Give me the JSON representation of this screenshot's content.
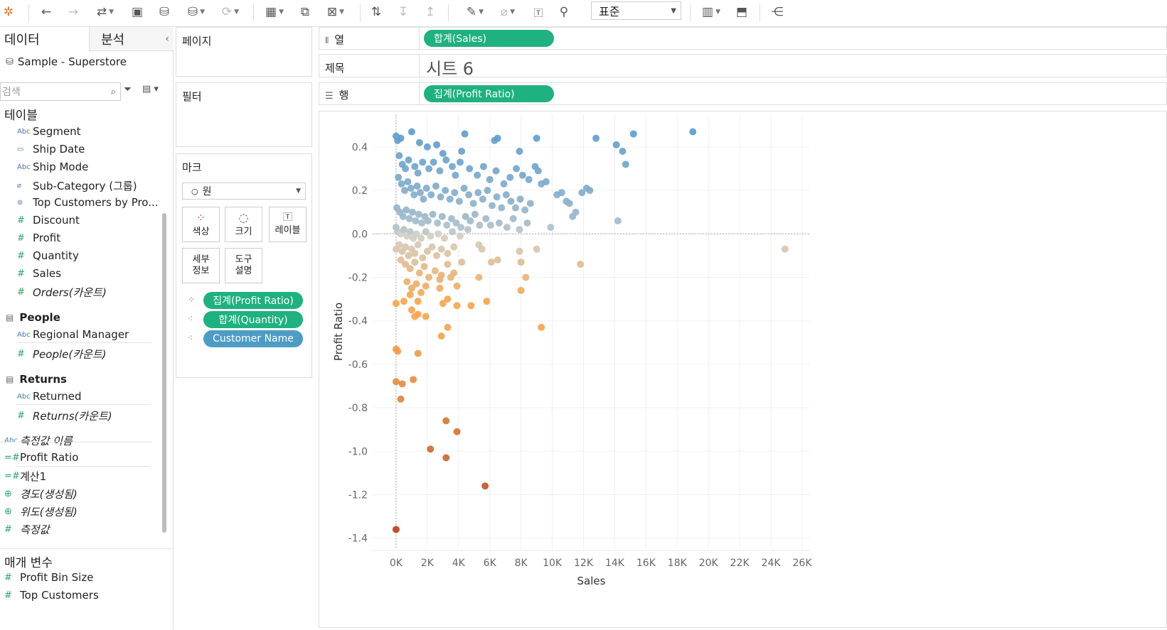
{
  "toolbar": {
    "icons": [
      "tableau-logo-icon",
      "undo-icon",
      "redo-icon",
      "replay-icon",
      "save-icon",
      "new-datasource-icon",
      "datasource-icon",
      "refresh-icon",
      "new-worksheet-icon",
      "duplicate-sheet-icon",
      "clear-sheet-icon",
      "swap-icon",
      "sort-asc-icon",
      "sort-desc-icon",
      "highlight-icon",
      "group-icon",
      "label-icon",
      "pin-icon",
      "show-me-icon",
      "presentation-icon",
      "share-icon"
    ],
    "fit_value": "표준"
  },
  "data_pane": {
    "tab_data": "데이터",
    "tab_analysis": "분석",
    "datasource": "Sample - Superstore",
    "search_placeholder": "검색",
    "tables_header": "테이블",
    "orders_fields": [
      {
        "type": "Abc",
        "name": "Segment"
      },
      {
        "type": "date",
        "name": "Ship Date"
      },
      {
        "type": "Abc",
        "name": "Ship Mode"
      },
      {
        "type": "clip",
        "name": "Sub-Category (그룹)"
      },
      {
        "type": "set",
        "name": "Top Customers by Pro..."
      },
      {
        "type": "#",
        "name": "Discount"
      },
      {
        "type": "#",
        "name": "Profit"
      },
      {
        "type": "#",
        "name": "Quantity"
      },
      {
        "type": "#",
        "name": "Sales"
      },
      {
        "type": "#",
        "name": "Orders(카운트)"
      }
    ],
    "people_group": "People",
    "people_fields": [
      {
        "type": "Abc",
        "name": "Regional Manager"
      },
      {
        "type": "#",
        "name": "People(카운트)"
      }
    ],
    "returns_group": "Returns",
    "returns_fields": [
      {
        "type": "Abc",
        "name": "Returned"
      },
      {
        "type": "#",
        "name": "Returns(카운트)"
      }
    ],
    "misc_fields": [
      {
        "type": "Abc",
        "name": "측정값 이름"
      },
      {
        "type": "=#",
        "name": "Profit Ratio"
      },
      {
        "type": "=#",
        "name": "계산1"
      },
      {
        "type": "geo",
        "name": "경도(생성됨)"
      },
      {
        "type": "geo",
        "name": "위도(생성됨)"
      },
      {
        "type": "#",
        "name": "측정값"
      }
    ],
    "params_header": "매개 변수",
    "params": [
      {
        "type": "#",
        "name": "Profit Bin Size"
      },
      {
        "type": "#",
        "name": "Top Customers"
      }
    ]
  },
  "shelves": {
    "pages_label": "페이지",
    "filters_label": "필터",
    "marks_label": "마크",
    "mark_type": "원",
    "mark_buttons": {
      "color": "색상",
      "size": "크기",
      "label": "레이블",
      "detail_1": "세부",
      "detail_2": "정보",
      "tooltip_1": "도구",
      "tooltip_2": "설명"
    },
    "mark_pills": [
      {
        "label": "집계(Profit Ratio)",
        "color": "#1fb17f"
      },
      {
        "label": "합계(Quantity)",
        "color": "#1fb17f"
      },
      {
        "label": "Customer Name",
        "color": "#4d9cc4"
      }
    ],
    "columns_label": "열",
    "columns_pill": "합계(Sales)",
    "title_label": "제목",
    "sheet_title": "시트 6",
    "rows_label": "행",
    "rows_pill": "집계(Profit Ratio)"
  },
  "chart_data": {
    "type": "scatter",
    "title": "",
    "xlabel": "Sales",
    "ylabel": "Profit Ratio",
    "xlim": [
      -1500,
      26500
    ],
    "ylim": [
      -1.45,
      0.55
    ],
    "xticks": [
      "0K",
      "2K",
      "4K",
      "6K",
      "8K",
      "10K",
      "12K",
      "14K",
      "16K",
      "18K",
      "20K",
      "22K",
      "24K",
      "26K"
    ],
    "xtick_values": [
      0,
      2000,
      4000,
      6000,
      8000,
      10000,
      12000,
      14000,
      16000,
      18000,
      20000,
      22000,
      24000,
      26000
    ],
    "yticks": [
      "0.4",
      "0.2",
      "0.0",
      "-0.2",
      "-0.4",
      "-0.6",
      "-0.8",
      "-1.0",
      "-1.2",
      "-1.4"
    ],
    "ytick_values": [
      0.4,
      0.2,
      0.0,
      -0.2,
      -0.4,
      -0.6,
      -0.8,
      -1.0,
      -1.2,
      -1.4
    ],
    "grid": true,
    "color_scale": {
      "field": "Profit Ratio",
      "min": -1.36,
      "max": 0.47,
      "low_color": "#b5421d",
      "mid_color": "#d0cfc8",
      "high_color": "#5f9dcc"
    },
    "points": [
      [
        0,
        0.45
      ],
      [
        100,
        0.43
      ],
      [
        300,
        0.44
      ],
      [
        1000,
        0.47
      ],
      [
        1500,
        0.42
      ],
      [
        2000,
        0.4
      ],
      [
        2600,
        0.41
      ],
      [
        3000,
        0.37
      ],
      [
        4200,
        0.38
      ],
      [
        4400,
        0.46
      ],
      [
        6300,
        0.43
      ],
      [
        6500,
        0.44
      ],
      [
        7900,
        0.38
      ],
      [
        9000,
        0.44
      ],
      [
        12800,
        0.44
      ],
      [
        14100,
        0.41
      ],
      [
        14500,
        0.38
      ],
      [
        14700,
        0.32
      ],
      [
        15200,
        0.46
      ],
      [
        19000,
        0.47
      ],
      [
        200,
        0.36
      ],
      [
        400,
        0.32
      ],
      [
        600,
        0.3
      ],
      [
        800,
        0.34
      ],
      [
        1200,
        0.31
      ],
      [
        1400,
        0.28
      ],
      [
        1700,
        0.33
      ],
      [
        2100,
        0.3
      ],
      [
        2400,
        0.33
      ],
      [
        2800,
        0.29
      ],
      [
        3200,
        0.34
      ],
      [
        3600,
        0.31
      ],
      [
        3800,
        0.27
      ],
      [
        4100,
        0.33
      ],
      [
        4700,
        0.3
      ],
      [
        5200,
        0.27
      ],
      [
        5600,
        0.31
      ],
      [
        6000,
        0.25
      ],
      [
        6400,
        0.29
      ],
      [
        6900,
        0.23
      ],
      [
        7300,
        0.26
      ],
      [
        7700,
        0.3
      ],
      [
        8100,
        0.27
      ],
      [
        8500,
        0.25
      ],
      [
        9100,
        0.29
      ],
      [
        9300,
        0.23
      ],
      [
        9600,
        0.24
      ],
      [
        8900,
        0.31
      ],
      [
        150,
        0.26
      ],
      [
        350,
        0.23
      ],
      [
        550,
        0.2
      ],
      [
        750,
        0.24
      ],
      [
        950,
        0.21
      ],
      [
        1150,
        0.18
      ],
      [
        1350,
        0.22
      ],
      [
        1550,
        0.19
      ],
      [
        1750,
        0.16
      ],
      [
        1950,
        0.21
      ],
      [
        2250,
        0.18
      ],
      [
        2550,
        0.22
      ],
      [
        2850,
        0.17
      ],
      [
        3150,
        0.2
      ],
      [
        3450,
        0.16
      ],
      [
        3750,
        0.19
      ],
      [
        4050,
        0.15
      ],
      [
        4350,
        0.21
      ],
      [
        4650,
        0.18
      ],
      [
        4950,
        0.14
      ],
      [
        5250,
        0.19
      ],
      [
        5550,
        0.16
      ],
      [
        5850,
        0.2
      ],
      [
        6150,
        0.13
      ],
      [
        6450,
        0.17
      ],
      [
        6750,
        0.12
      ],
      [
        7050,
        0.18
      ],
      [
        7350,
        0.15
      ],
      [
        7650,
        0.12
      ],
      [
        7950,
        0.16
      ],
      [
        8250,
        0.11
      ],
      [
        8600,
        0.14
      ],
      [
        10300,
        0.18
      ],
      [
        10600,
        0.19
      ],
      [
        10900,
        0.15
      ],
      [
        11100,
        0.14
      ],
      [
        11900,
        0.19
      ],
      [
        12200,
        0.21
      ],
      [
        12400,
        0.2
      ],
      [
        11500,
        0.1
      ],
      [
        50,
        0.12
      ],
      [
        250,
        0.1
      ],
      [
        450,
        0.08
      ],
      [
        650,
        0.11
      ],
      [
        850,
        0.07
      ],
      [
        1050,
        0.1
      ],
      [
        1250,
        0.06
      ],
      [
        1450,
        0.09
      ],
      [
        1650,
        0.05
      ],
      [
        1850,
        0.08
      ],
      [
        2050,
        0.06
      ],
      [
        2350,
        0.09
      ],
      [
        2650,
        0.05
      ],
      [
        2950,
        0.08
      ],
      [
        3250,
        0.04
      ],
      [
        3550,
        0.07
      ],
      [
        3850,
        0.05
      ],
      [
        4150,
        0.03
      ],
      [
        4450,
        0.08
      ],
      [
        4750,
        0.06
      ],
      [
        5050,
        0.09
      ],
      [
        5350,
        0.04
      ],
      [
        5750,
        0.07
      ],
      [
        6050,
        0.04
      ],
      [
        6600,
        0.05
      ],
      [
        7100,
        0.03
      ],
      [
        7500,
        0.07
      ],
      [
        7900,
        0.02
      ],
      [
        8400,
        0.05
      ],
      [
        9900,
        0.03
      ],
      [
        11300,
        0.08
      ],
      [
        14200,
        0.06
      ],
      [
        0,
        0.03
      ],
      [
        100,
        0.01
      ],
      [
        300,
        0.0
      ],
      [
        500,
        0.02
      ],
      [
        700,
        -0.01
      ],
      [
        900,
        0.01
      ],
      [
        1100,
        -0.02
      ],
      [
        1300,
        0.0
      ],
      [
        1600,
        -0.02
      ],
      [
        1900,
        0.01
      ],
      [
        2200,
        -0.01
      ],
      [
        2700,
        0.0
      ],
      [
        3100,
        -0.02
      ],
      [
        3600,
        0.01
      ],
      [
        4100,
        -0.01
      ],
      [
        4600,
        0.02
      ],
      [
        0,
        -0.07
      ],
      [
        200,
        -0.05
      ],
      [
        400,
        -0.08
      ],
      [
        600,
        -0.06
      ],
      [
        800,
        -0.1
      ],
      [
        1000,
        -0.07
      ],
      [
        1200,
        -0.09
      ],
      [
        1400,
        -0.05
      ],
      [
        1700,
        -0.11
      ],
      [
        2000,
        -0.08
      ],
      [
        2300,
        -0.06
      ],
      [
        2600,
        -0.1
      ],
      [
        2900,
        -0.07
      ],
      [
        3300,
        -0.09
      ],
      [
        3700,
        -0.06
      ],
      [
        5300,
        -0.05
      ],
      [
        5500,
        -0.07
      ],
      [
        7900,
        -0.08
      ],
      [
        9000,
        -0.07
      ],
      [
        24900,
        -0.07
      ],
      [
        300,
        -0.12
      ],
      [
        600,
        -0.14
      ],
      [
        900,
        -0.16
      ],
      [
        1200,
        -0.13
      ],
      [
        1500,
        -0.18
      ],
      [
        1800,
        -0.15
      ],
      [
        2100,
        -0.2
      ],
      [
        2500,
        -0.17
      ],
      [
        2900,
        -0.19
      ],
      [
        3300,
        -0.14
      ],
      [
        3700,
        -0.18
      ],
      [
        4200,
        -0.13
      ],
      [
        6100,
        -0.13
      ],
      [
        6500,
        -0.12
      ],
      [
        8000,
        -0.13
      ],
      [
        11800,
        -0.14
      ],
      [
        700,
        -0.22
      ],
      [
        1000,
        -0.25
      ],
      [
        1300,
        -0.23
      ],
      [
        1600,
        -0.27
      ],
      [
        1900,
        -0.24
      ],
      [
        2800,
        -0.21
      ],
      [
        3500,
        -0.2
      ],
      [
        5300,
        -0.2
      ],
      [
        8300,
        -0.2
      ],
      [
        900,
        -0.28
      ],
      [
        1400,
        -0.31
      ],
      [
        2800,
        -0.25
      ],
      [
        3900,
        -0.24
      ],
      [
        8000,
        -0.26
      ],
      [
        0,
        -0.32
      ],
      [
        500,
        -0.31
      ],
      [
        1000,
        -0.35
      ],
      [
        1400,
        -0.37
      ],
      [
        1900,
        -0.38
      ],
      [
        3000,
        -0.32
      ],
      [
        3300,
        -0.3
      ],
      [
        3900,
        -0.33
      ],
      [
        4800,
        -0.33
      ],
      [
        5800,
        -0.31
      ],
      [
        1200,
        -0.38
      ],
      [
        3300,
        -0.43
      ],
      [
        2900,
        -0.47
      ],
      [
        9300,
        -0.43
      ],
      [
        0,
        -0.53
      ],
      [
        100,
        -0.54
      ],
      [
        1400,
        -0.55
      ],
      [
        0,
        -0.68
      ],
      [
        400,
        -0.69
      ],
      [
        1100,
        -0.67
      ],
      [
        300,
        -0.76
      ],
      [
        3200,
        -0.86
      ],
      [
        3900,
        -0.91
      ],
      [
        2200,
        -0.99
      ],
      [
        3200,
        -1.03
      ],
      [
        5700,
        -1.16
      ],
      [
        0,
        -1.36
      ]
    ]
  }
}
